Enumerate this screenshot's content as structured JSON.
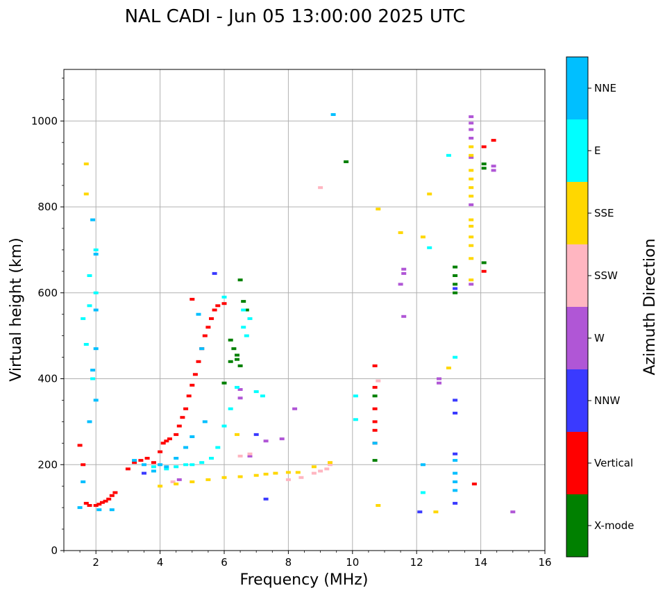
{
  "chart_data": {
    "type": "scatter",
    "title": "NAL CADI - Jun 05 13:00:00 2025 UTC",
    "xlabel": "Frequency (MHz)",
    "ylabel": "Virtual height (km)",
    "xlim": [
      1,
      16
    ],
    "ylim": [
      0,
      1120
    ],
    "xticks": [
      2,
      4,
      6,
      8,
      10,
      12,
      14,
      16
    ],
    "yticks": [
      0,
      200,
      400,
      600,
      800,
      1000
    ],
    "grid": true,
    "colorbar": {
      "title": "Azimuth Direction",
      "entries": [
        {
          "name": "X-mode",
          "color": "#008000"
        },
        {
          "name": "Vertical",
          "color": "#ff0000"
        },
        {
          "name": "NNW",
          "color": "#3a3aff"
        },
        {
          "name": "W",
          "color": "#b056d6"
        },
        {
          "name": "SSW",
          "color": "#ffb6c1"
        },
        {
          "name": "SSE",
          "color": "#ffd700"
        },
        {
          "name": "E",
          "color": "#00ffff"
        },
        {
          "name": "NNE",
          "color": "#00bfff"
        }
      ]
    },
    "series": [
      {
        "name": "Vertical",
        "color": "#ff0000",
        "points": [
          [
            1.5,
            245
          ],
          [
            1.6,
            200
          ],
          [
            1.7,
            110
          ],
          [
            1.8,
            105
          ],
          [
            2.0,
            105
          ],
          [
            2.1,
            108
          ],
          [
            2.2,
            112
          ],
          [
            2.3,
            115
          ],
          [
            2.4,
            120
          ],
          [
            2.5,
            128
          ],
          [
            2.6,
            135
          ],
          [
            3.0,
            190
          ],
          [
            3.2,
            205
          ],
          [
            3.4,
            210
          ],
          [
            3.6,
            215
          ],
          [
            3.8,
            205
          ],
          [
            4.0,
            230
          ],
          [
            4.1,
            250
          ],
          [
            4.2,
            255
          ],
          [
            4.3,
            260
          ],
          [
            4.5,
            270
          ],
          [
            4.6,
            290
          ],
          [
            4.7,
            310
          ],
          [
            4.8,
            330
          ],
          [
            4.9,
            360
          ],
          [
            5.0,
            385
          ],
          [
            5.1,
            410
          ],
          [
            5.2,
            440
          ],
          [
            5.3,
            470
          ],
          [
            5.4,
            500
          ],
          [
            5.5,
            520
          ],
          [
            5.6,
            540
          ],
          [
            5.7,
            560
          ],
          [
            5.8,
            570
          ],
          [
            5.0,
            585
          ],
          [
            6.0,
            575
          ],
          [
            10.7,
            430
          ],
          [
            10.7,
            380
          ],
          [
            10.7,
            330
          ],
          [
            10.7,
            300
          ],
          [
            10.7,
            280
          ],
          [
            10.7,
            250
          ],
          [
            14.1,
            650
          ],
          [
            14.1,
            940
          ],
          [
            14.4,
            955
          ],
          [
            13.8,
            155
          ]
        ]
      },
      {
        "name": "X-mode",
        "color": "#008000",
        "points": [
          [
            6.2,
            490
          ],
          [
            6.3,
            470
          ],
          [
            6.4,
            455
          ],
          [
            6.4,
            445
          ],
          [
            6.2,
            440
          ],
          [
            6.5,
            430
          ],
          [
            6.0,
            390
          ],
          [
            6.6,
            580
          ],
          [
            6.7,
            560
          ],
          [
            6.5,
            630
          ],
          [
            9.8,
            905
          ],
          [
            10.7,
            360
          ],
          [
            10.7,
            210
          ],
          [
            13.2,
            660
          ],
          [
            13.2,
            640
          ],
          [
            13.2,
            620
          ],
          [
            13.2,
            600
          ],
          [
            14.1,
            670
          ],
          [
            14.1,
            900
          ],
          [
            14.1,
            890
          ]
        ]
      },
      {
        "name": "NNW",
        "color": "#3a3aff",
        "points": [
          [
            5.7,
            645
          ],
          [
            3.5,
            180
          ],
          [
            13.2,
            610
          ],
          [
            13.2,
            350
          ],
          [
            13.2,
            320
          ],
          [
            13.2,
            225
          ],
          [
            13.2,
            110
          ],
          [
            7.3,
            120
          ],
          [
            12.1,
            90
          ],
          [
            7.0,
            270
          ]
        ]
      },
      {
        "name": "W",
        "color": "#b056d6",
        "points": [
          [
            6.5,
            375
          ],
          [
            6.5,
            355
          ],
          [
            6.8,
            220
          ],
          [
            7.3,
            255
          ],
          [
            7.8,
            260
          ],
          [
            8.2,
            330
          ],
          [
            11.6,
            655
          ],
          [
            11.6,
            645
          ],
          [
            11.6,
            545
          ],
          [
            11.5,
            620
          ],
          [
            12.7,
            400
          ],
          [
            12.7,
            390
          ],
          [
            13.7,
            1010
          ],
          [
            13.7,
            995
          ],
          [
            13.7,
            980
          ],
          [
            13.7,
            960
          ],
          [
            13.7,
            915
          ],
          [
            13.7,
            805
          ],
          [
            13.7,
            620
          ],
          [
            14.4,
            895
          ],
          [
            14.4,
            885
          ],
          [
            15.0,
            90
          ],
          [
            4.6,
            165
          ]
        ]
      },
      {
        "name": "SSW",
        "color": "#ffb6c1",
        "points": [
          [
            9.0,
            845
          ],
          [
            10.8,
            395
          ],
          [
            8.0,
            165
          ],
          [
            8.4,
            170
          ],
          [
            8.8,
            180
          ],
          [
            9.0,
            185
          ],
          [
            9.2,
            190
          ],
          [
            9.3,
            200
          ],
          [
            4.4,
            160
          ],
          [
            6.5,
            220
          ],
          [
            6.8,
            225
          ]
        ]
      },
      {
        "name": "SSE",
        "color": "#ffd700",
        "points": [
          [
            1.7,
            900
          ],
          [
            1.7,
            830
          ],
          [
            10.8,
            795
          ],
          [
            11.5,
            740
          ],
          [
            12.2,
            730
          ],
          [
            12.4,
            830
          ],
          [
            13.0,
            425
          ],
          [
            12.6,
            90
          ],
          [
            10.8,
            105
          ],
          [
            13.7,
            940
          ],
          [
            13.7,
            920
          ],
          [
            13.7,
            885
          ],
          [
            13.7,
            865
          ],
          [
            13.7,
            845
          ],
          [
            13.7,
            825
          ],
          [
            13.7,
            770
          ],
          [
            13.7,
            755
          ],
          [
            13.7,
            730
          ],
          [
            13.7,
            710
          ],
          [
            13.7,
            680
          ],
          [
            13.7,
            630
          ],
          [
            4.0,
            150
          ],
          [
            4.5,
            155
          ],
          [
            5.0,
            160
          ],
          [
            5.5,
            165
          ],
          [
            6.0,
            170
          ],
          [
            6.5,
            172
          ],
          [
            7.0,
            175
          ],
          [
            7.3,
            178
          ],
          [
            7.6,
            180
          ],
          [
            8.0,
            182
          ],
          [
            8.3,
            182
          ],
          [
            8.8,
            195
          ],
          [
            9.3,
            205
          ],
          [
            6.4,
            270
          ]
        ]
      },
      {
        "name": "E",
        "color": "#00ffff",
        "points": [
          [
            1.6,
            540
          ],
          [
            1.7,
            480
          ],
          [
            1.8,
            640
          ],
          [
            1.8,
            570
          ],
          [
            2.0,
            700
          ],
          [
            2.0,
            600
          ],
          [
            1.9,
            400
          ],
          [
            3.8,
            195
          ],
          [
            4.2,
            190
          ],
          [
            4.5,
            195
          ],
          [
            4.8,
            200
          ],
          [
            5.0,
            200
          ],
          [
            5.3,
            205
          ],
          [
            5.6,
            215
          ],
          [
            5.8,
            240
          ],
          [
            6.0,
            290
          ],
          [
            6.2,
            330
          ],
          [
            6.4,
            380
          ],
          [
            6.0,
            590
          ],
          [
            6.6,
            560
          ],
          [
            6.8,
            540
          ],
          [
            7.0,
            370
          ],
          [
            7.2,
            360
          ],
          [
            6.6,
            520
          ],
          [
            6.7,
            500
          ],
          [
            12.4,
            705
          ],
          [
            12.2,
            135
          ],
          [
            13.2,
            450
          ],
          [
            13.0,
            920
          ],
          [
            10.1,
            305
          ],
          [
            10.1,
            360
          ]
        ]
      },
      {
        "name": "NNE",
        "color": "#00bfff",
        "points": [
          [
            1.9,
            770
          ],
          [
            2.0,
            690
          ],
          [
            2.0,
            560
          ],
          [
            2.0,
            470
          ],
          [
            1.9,
            420
          ],
          [
            2.0,
            350
          ],
          [
            1.8,
            300
          ],
          [
            1.6,
            160
          ],
          [
            1.5,
            100
          ],
          [
            2.1,
            95
          ],
          [
            3.2,
            210
          ],
          [
            3.5,
            200
          ],
          [
            3.8,
            185
          ],
          [
            4.2,
            195
          ],
          [
            4.5,
            215
          ],
          [
            4.8,
            240
          ],
          [
            5.0,
            265
          ],
          [
            5.4,
            300
          ],
          [
            5.3,
            470
          ],
          [
            5.2,
            550
          ],
          [
            9.4,
            1015
          ],
          [
            12.2,
            200
          ],
          [
            13.2,
            210
          ],
          [
            13.2,
            180
          ],
          [
            13.2,
            160
          ],
          [
            13.2,
            140
          ],
          [
            10.7,
            250
          ],
          [
            2.5,
            95
          ],
          [
            4.0,
            200
          ]
        ]
      }
    ]
  }
}
